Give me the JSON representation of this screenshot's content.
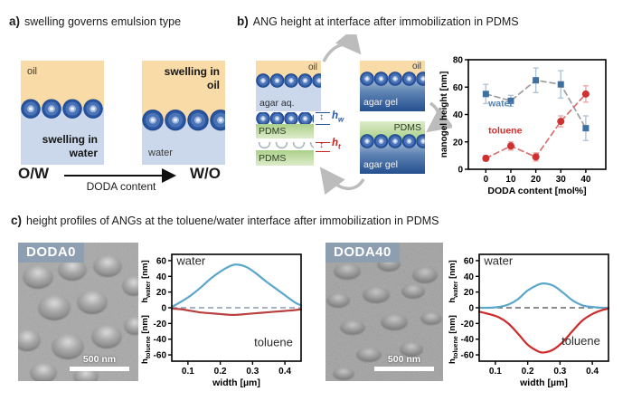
{
  "panel_a": {
    "tag": "a)",
    "title": "swelling governs emulsion type",
    "left_box": {
      "oil_label": "oil",
      "cap1": "swelling in",
      "cap2": "water"
    },
    "right_box": {
      "cap1": "swelling in",
      "cap2": "oil",
      "water_label": "water"
    },
    "ow": "O/W",
    "wo": "W/O",
    "axis_label": "DODA content"
  },
  "panel_b": {
    "tag": "b)",
    "title": "ANG height at interface after immobilization in PDMS",
    "boxes": {
      "tl": {
        "top": "oil",
        "bottom": "agar aq."
      },
      "tr": {
        "top": "oil",
        "bottom": "agar gel"
      },
      "br": {
        "top": "PDMS",
        "bottom": "agar gel"
      }
    },
    "strips": {
      "pdms1": "PDMS",
      "pdms2": "PDMS"
    },
    "measures": {
      "hw": {
        "arrow": "↕",
        "sym": "h",
        "sub": "w"
      },
      "ht": {
        "arrow": "↕",
        "sym": "h",
        "sub": "t"
      }
    }
  },
  "panel_c": {
    "tag": "c)",
    "title": "height profiles of ANGs at the toluene/water interface after immobilization in PDMS",
    "sem_left": {
      "label": "DODA0",
      "scalebar": "500 nm"
    },
    "sem_right": {
      "label": "DODA40",
      "scalebar": "500 nm"
    },
    "ylabels": {
      "prefix": "h",
      "sub_top": "water",
      "sub_bottom": "toluene",
      "unit": " [nm]"
    }
  },
  "colors": {
    "oil": "#f8dba6",
    "water_phase": "#cbd8eb",
    "agar_gel": "#24508f",
    "pdms": "#a6cc82",
    "nanogel": "#2a55a0",
    "water_series": "#3e6f9e",
    "toluene_series": "#d03030",
    "profile_water": "#5aa7cb",
    "profile_toluene": "#c23a3a"
  },
  "chart_data": [
    {
      "type": "scatter-line",
      "title": "nanogel height at interface vs DODA content",
      "xlabel": "DODA content [mol%]",
      "ylabel": "nanogel height [nm]",
      "xlim": [
        -7,
        48
      ],
      "ylim": [
        0,
        80
      ],
      "xticks": [
        0,
        10,
        20,
        30,
        40
      ],
      "yticks": [
        0,
        20,
        40,
        60,
        80
      ],
      "grid": false,
      "legend": "inline",
      "x": [
        0,
        10,
        20,
        30,
        40
      ],
      "series": [
        {
          "name": "water",
          "marker": "square",
          "color": "#3e6f9e",
          "line_color": "#9a9a9a",
          "err_color": "#afc4d8",
          "values": [
            55,
            50,
            65,
            62,
            30
          ],
          "errors": [
            7,
            4,
            9,
            10,
            9
          ],
          "label_xy": [
            1,
            46
          ],
          "label_color": "#4e82b8"
        },
        {
          "name": "toluene",
          "marker": "circle",
          "color": "#d03030",
          "line_color": "#db6b6b",
          "err_color": "#e9a9a9",
          "values": [
            8,
            17,
            9,
            35,
            55
          ],
          "errors": [
            2,
            3,
            3,
            4,
            6
          ],
          "label_xy": [
            1,
            26
          ],
          "label_color": "#d03030"
        }
      ]
    },
    {
      "type": "line",
      "title": "DODA0 height profile at toluene/water interface",
      "xlabel": "width [µm]",
      "ylabel_top": "h_water [nm]",
      "ylabel_bottom": "h_toluene [nm]",
      "xlim": [
        0.05,
        0.45
      ],
      "ylim": [
        -68,
        68
      ],
      "xticks": [
        0.1,
        0.2,
        0.3,
        0.4
      ],
      "yticks": [
        60,
        40,
        20,
        0,
        -20,
        -40,
        -60
      ],
      "zero_line_color": "#8c9bb5",
      "x": [
        0.05,
        0.08,
        0.11,
        0.14,
        0.17,
        0.2,
        0.23,
        0.25,
        0.28,
        0.31,
        0.34,
        0.37,
        0.4,
        0.43,
        0.45
      ],
      "series": [
        {
          "name": "water",
          "color": "#5aa7cb",
          "values": [
            1,
            8,
            16,
            26,
            37,
            46,
            53,
            55,
            52,
            44,
            34,
            25,
            16,
            7,
            3
          ],
          "label_xy": [
            0.065,
            55
          ]
        },
        {
          "name": "toluene",
          "color": "#b84040",
          "values": [
            -1,
            -2,
            -4,
            -6,
            -7,
            -8,
            -9,
            -9,
            -8,
            -7,
            -6,
            -5,
            -4,
            -3,
            -2
          ],
          "label_xy": [
            0.305,
            -49
          ]
        }
      ]
    },
    {
      "type": "line",
      "title": "DODA40 height profile at toluene/water interface",
      "xlabel": "width [µm]",
      "ylabel_top": "h_water [nm]",
      "ylabel_bottom": "h_toluene [nm]",
      "xlim": [
        0.05,
        0.45
      ],
      "ylim": [
        -68,
        68
      ],
      "xticks": [
        0.1,
        0.2,
        0.3,
        0.4
      ],
      "yticks": [
        60,
        40,
        20,
        0,
        -20,
        -40,
        -60
      ],
      "zero_line_color": "#666666",
      "x": [
        0.05,
        0.08,
        0.11,
        0.14,
        0.17,
        0.2,
        0.23,
        0.25,
        0.28,
        0.31,
        0.34,
        0.37,
        0.4,
        0.43,
        0.45
      ],
      "series": [
        {
          "name": "water",
          "color": "#5aa7cb",
          "values": [
            0,
            0,
            1,
            4,
            11,
            22,
            29,
            31,
            28,
            19,
            9,
            3,
            1,
            0,
            0
          ],
          "label_xy": [
            0.065,
            55
          ]
        },
        {
          "name": "toluene",
          "color": "#ce2b2b",
          "values": [
            -5,
            -8,
            -12,
            -20,
            -33,
            -47,
            -55,
            -57,
            -53,
            -43,
            -29,
            -16,
            -8,
            -3,
            -1
          ],
          "label_xy": [
            0.305,
            -47
          ]
        }
      ]
    }
  ]
}
